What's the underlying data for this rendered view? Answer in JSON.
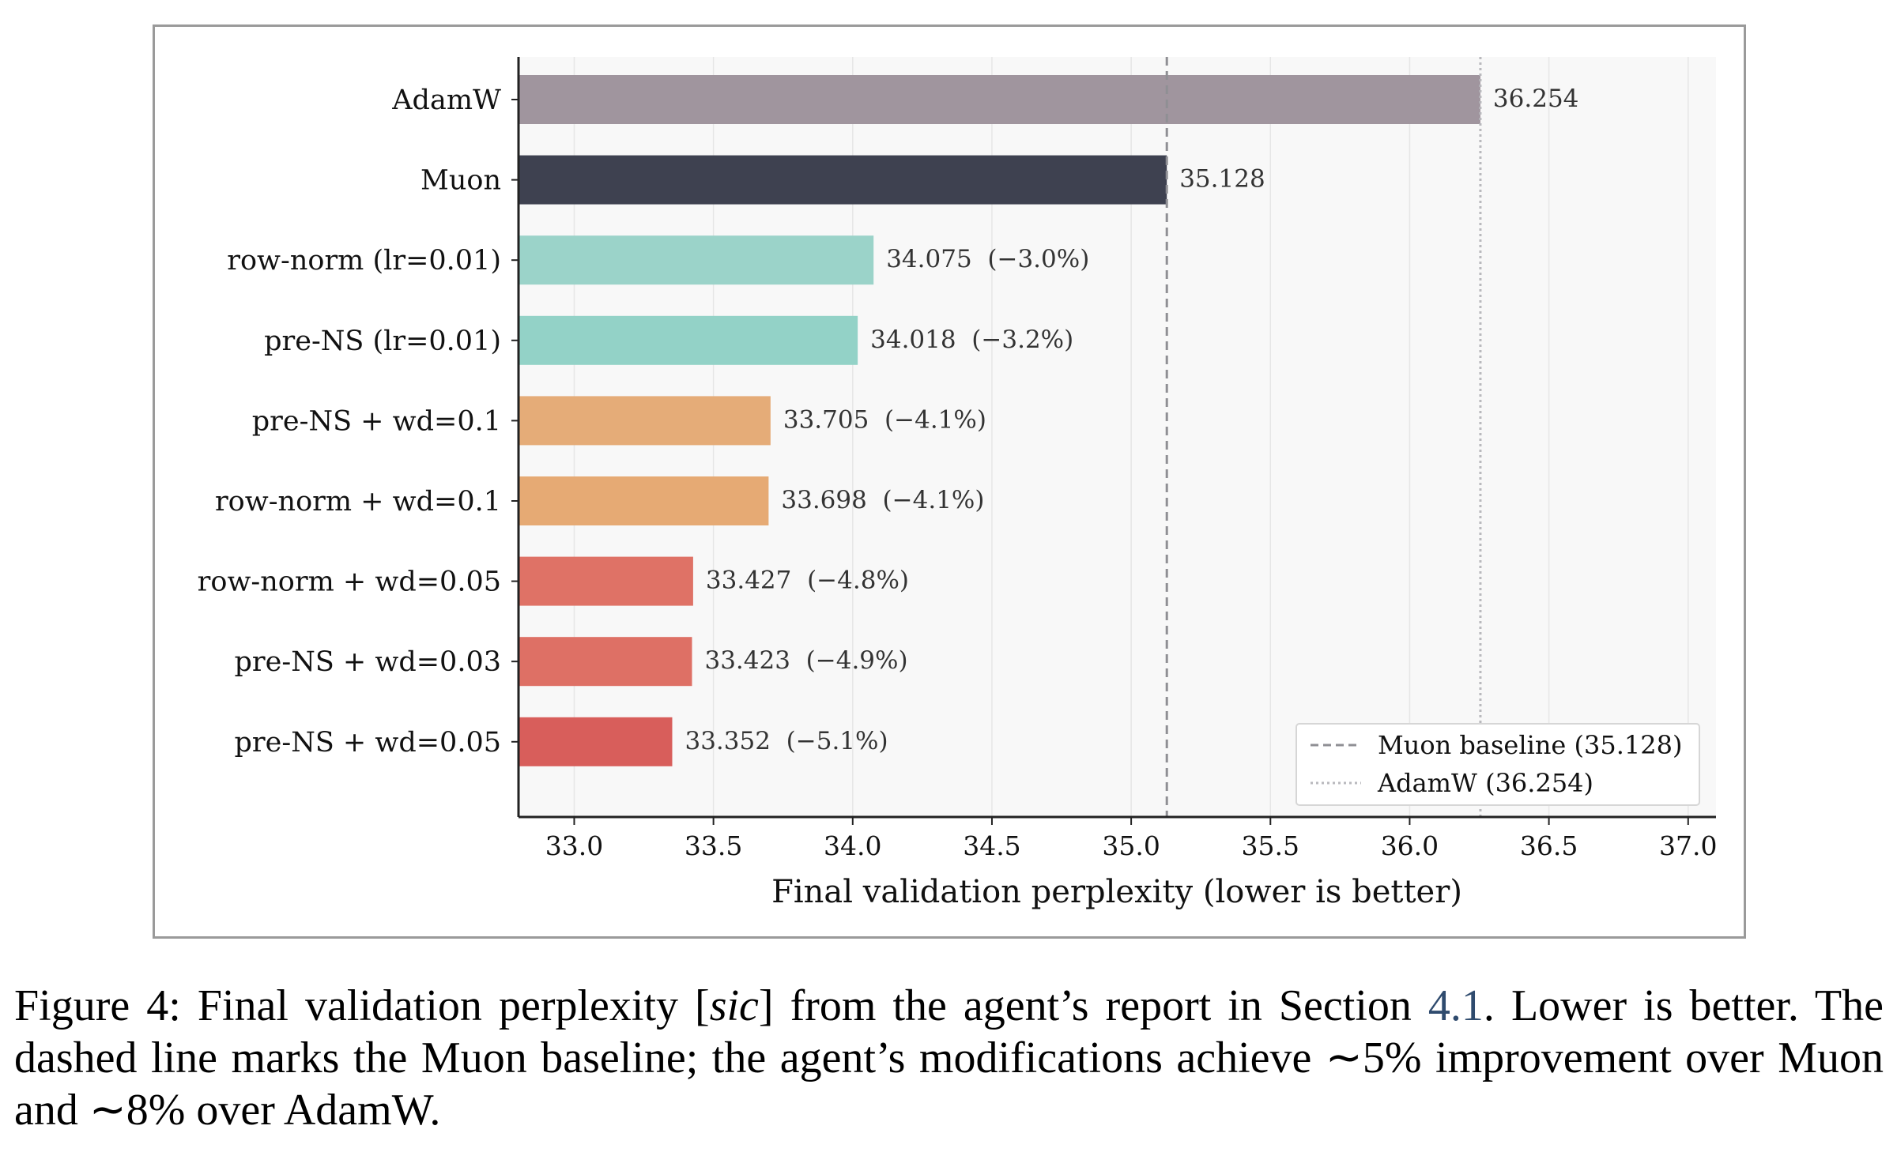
{
  "chart_data": {
    "type": "bar",
    "orientation": "horizontal",
    "categories": [
      "AdamW",
      "Muon",
      "row-norm (lr=0.01)",
      "pre-NS (lr=0.01)",
      "pre-NS + wd=0.1",
      "row-norm + wd=0.1",
      "row-norm + wd=0.05",
      "pre-NS + wd=0.03",
      "pre-NS + wd=0.05"
    ],
    "values": [
      36.254,
      35.128,
      34.075,
      34.018,
      33.705,
      33.698,
      33.427,
      33.423,
      33.352
    ],
    "data_labels": [
      "36.254",
      "35.128",
      "34.075  (−3.0%)",
      "34.018  (−3.2%)",
      "33.705  (−4.1%)",
      "33.698  (−4.1%)",
      "33.427  (−4.8%)",
      "33.423  (−4.9%)",
      "33.352  (−5.1%)"
    ],
    "bar_colors": [
      "#a0959e",
      "#3e4150",
      "#9bd3c9",
      "#93d2c7",
      "#e5ac78",
      "#e6aa74",
      "#df7266",
      "#de7065",
      "#d85e5b"
    ],
    "xlim": [
      32.8,
      37.1
    ],
    "xticks": [
      "33.0",
      "33.5",
      "34.0",
      "34.5",
      "35.0",
      "35.5",
      "36.0",
      "36.5",
      "37.0"
    ],
    "xlabel": "Final validation perplexity (lower is better)",
    "ylabel": "",
    "title": "",
    "grid": "vertical",
    "reference_lines": [
      {
        "name": "Muon baseline (35.128)",
        "value": 35.128,
        "style": "dashed",
        "color": "#8f8f94"
      },
      {
        "name": "AdamW (36.254)",
        "value": 36.254,
        "style": "dotted",
        "color": "#b9b9bd"
      }
    ],
    "legend_position": "bottom-right"
  },
  "caption": {
    "prefix": "Figure 4: Final validation perplexity [",
    "sic": "sic",
    "middle": "] from the agent’s report in Section ",
    "section_ref": "4.1",
    "suffix": ". Lower is better. The dashed line marks the Muon baseline; the agent’s modifications achieve ∼5% improvement over Muon and ∼8% over AdamW."
  }
}
